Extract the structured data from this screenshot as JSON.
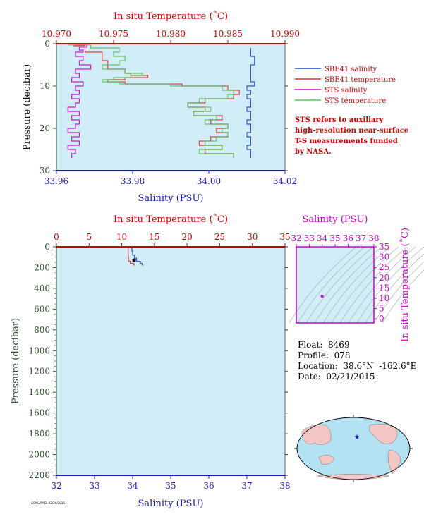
{
  "colors": {
    "background": "#d1eef8",
    "temperature_axis": "#cc0000",
    "salinity_axis": "#1a1ab0",
    "pressure_axis": "#2d4a2d",
    "inset_axis": "#cc00cc",
    "sbe_salinity": "#1f3fd0",
    "sbe_temperature": "#e03030",
    "sts_salinity": "#cc00cc",
    "sts_temperature": "#5cc05c"
  },
  "legend": [
    {
      "label": "SBE41 salinity",
      "color": "#1f3fd0"
    },
    {
      "label": "SBE41 temperature",
      "color": "#e03030"
    },
    {
      "label": "STS salinity",
      "color": "#cc00cc"
    },
    {
      "label": "STS temperature",
      "color": "#5cc05c"
    }
  ],
  "note": [
    "STS refers to auxiliary",
    "high-resolution near-surface",
    "T-S measurements funded",
    "by NASA."
  ],
  "float_info": {
    "float": "Float:  8469",
    "profile": "Profile:  078",
    "location": "Location:  38.6°N  -162.6°E",
    "date": "Date:  02/21/2015"
  },
  "footer": "AOML/PMEL 02/26/2015",
  "chart_data": [
    {
      "type": "line",
      "name": "near-surface profile",
      "top_axis_label": "In situ Temperature (˚C)",
      "bottom_axis_label": "Salinity (PSU)",
      "left_axis_label": "Pressure (decibar)",
      "top_ticks": [
        "10.970",
        "10.975",
        "10.980",
        "10.985",
        "10.990"
      ],
      "bottom_ticks": [
        "33.96",
        "33.98",
        "34.00",
        "34.02"
      ],
      "left_ticks": [
        "0",
        "10",
        "20",
        "30"
      ],
      "xlim_temperature": [
        10.97,
        10.99
      ],
      "xlim_salinity": [
        33.96,
        34.02
      ],
      "ylim_pressure": [
        30,
        0
      ],
      "series": [
        {
          "name": "SBE41 salinity",
          "axis": "salinity",
          "pressure": [
            1,
            3,
            5,
            7,
            9,
            10,
            11,
            12,
            13,
            14,
            15,
            16,
            17,
            18,
            19,
            20,
            21,
            22,
            23,
            24,
            25,
            26,
            27
          ],
          "values": [
            34.011,
            34.011,
            34.012,
            34.011,
            34.011,
            34.012,
            34.01,
            34.011,
            34.01,
            34.011,
            34.011,
            34.01,
            34.011,
            34.011,
            34.01,
            34.011,
            34.011,
            34.01,
            34.011,
            34.011,
            34.01,
            34.011,
            34.011
          ]
        },
        {
          "name": "SBE41 temperature",
          "axis": "temperature",
          "pressure": [
            0.5,
            2,
            4,
            6,
            7,
            7.5,
            8,
            8.5,
            9,
            9.5,
            10,
            11,
            12,
            13,
            14,
            15,
            16,
            17,
            18,
            19,
            20,
            21,
            22,
            23,
            24,
            25,
            26,
            27
          ],
          "values": [
            10.9715,
            10.9725,
            10.974,
            10.9745,
            10.976,
            10.9765,
            10.978,
            10.976,
            10.9745,
            10.976,
            10.981,
            10.985,
            10.986,
            10.9855,
            10.983,
            10.9815,
            10.983,
            10.982,
            10.9845,
            10.9835,
            10.985,
            10.984,
            10.985,
            10.9835,
            10.9825,
            10.9845,
            10.983,
            10.9855
          ]
        },
        {
          "name": "STS salinity",
          "axis": "salinity",
          "pressure": [
            0.3,
            0.8,
            1.5,
            2,
            3,
            4,
            5,
            6,
            7,
            8,
            9,
            10,
            11,
            12,
            13,
            14,
            15,
            16,
            17,
            18,
            19,
            20,
            21,
            22,
            23,
            24,
            25,
            26,
            27
          ],
          "values": [
            33.965,
            33.968,
            33.966,
            33.967,
            33.965,
            33.967,
            33.966,
            33.969,
            33.965,
            33.966,
            33.964,
            33.967,
            33.965,
            33.966,
            33.964,
            33.966,
            33.965,
            33.963,
            33.966,
            33.964,
            33.966,
            33.965,
            33.963,
            33.966,
            33.964,
            33.966,
            33.963,
            33.965,
            33.964
          ]
        },
        {
          "name": "STS temperature",
          "axis": "temperature",
          "pressure": [
            0.3,
            1,
            2,
            3,
            4,
            5,
            6,
            7,
            7.5,
            8,
            8.5,
            9,
            9.5,
            10,
            11,
            12,
            13,
            14,
            15,
            16,
            17,
            18,
            19,
            20,
            21,
            22,
            23,
            24,
            25,
            26,
            27
          ],
          "values": [
            10.971,
            10.973,
            10.9755,
            10.975,
            10.976,
            10.9755,
            10.974,
            10.976,
            10.9775,
            10.9765,
            10.975,
            10.974,
            10.9755,
            10.98,
            10.9845,
            10.9855,
            10.985,
            10.9825,
            10.9815,
            10.9835,
            10.982,
            10.984,
            10.983,
            10.985,
            10.9845,
            10.985,
            10.984,
            10.983,
            10.9845,
            10.9825,
            10.9855
          ]
        }
      ]
    },
    {
      "type": "line",
      "name": "full profile",
      "top_axis_label": "In situ Temperature (˚C)",
      "bottom_axis_label": "Salinity (PSU)",
      "left_axis_label": "Pressure (decibar)",
      "top_ticks": [
        "0",
        "5",
        "10",
        "15",
        "20",
        "25",
        "30",
        "35"
      ],
      "bottom_ticks": [
        "32",
        "33",
        "34",
        "35",
        "36",
        "37",
        "38"
      ],
      "left_ticks": [
        "0",
        "200",
        "400",
        "600",
        "800",
        "1000",
        "1200",
        "1400",
        "1600",
        "1800",
        "2000",
        "2200"
      ],
      "xlim_temperature": [
        0,
        35
      ],
      "xlim_salinity": [
        32,
        38
      ],
      "ylim_pressure": [
        2200,
        0
      ],
      "series": [
        {
          "name": "temperature",
          "axis": "temperature",
          "pressure": [
            0,
            40,
            80,
            110,
            140,
            160,
            175,
            180
          ],
          "values": [
            10.97,
            10.98,
            10.99,
            11.0,
            11.05,
            11.3,
            11.8,
            12.0
          ]
        },
        {
          "name": "salinity",
          "axis": "salinity",
          "pressure": [
            0,
            40,
            80,
            110,
            140,
            160,
            175,
            180
          ],
          "values": [
            33.97,
            33.98,
            34.0,
            34.05,
            34.1,
            34.2,
            34.25,
            34.27
          ]
        }
      ]
    },
    {
      "type": "scatter",
      "name": "T-S diagram",
      "top_axis_label": "Salinity (PSU)",
      "right_axis_label": "In situ Temperature (˚C)",
      "x_ticks": [
        "32",
        "33",
        "34",
        "35",
        "36",
        "37",
        "38"
      ],
      "y_ticks": [
        "0",
        "5",
        "10",
        "15",
        "20",
        "25",
        "30",
        "35"
      ],
      "xlim": [
        32,
        38
      ],
      "ylim": [
        -2,
        35
      ],
      "points": [
        {
          "x": 34.0,
          "y": 10.98
        }
      ]
    }
  ]
}
